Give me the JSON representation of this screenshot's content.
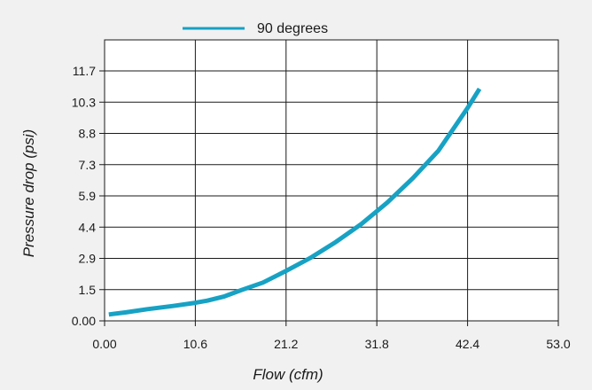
{
  "chart_data": {
    "type": "line",
    "title": "",
    "xlabel": "Flow (cfm)",
    "ylabel": "Pressure drop (psi)",
    "xlim": [
      0,
      53.0
    ],
    "ylim": [
      0,
      13.2
    ],
    "x_ticks": [
      "0.00",
      "10.6",
      "21.2",
      "31.8",
      "42.4",
      "53.0"
    ],
    "y_ticks": [
      "0.00",
      "1.5",
      "2.9",
      "4.4",
      "5.9",
      "7.3",
      "8.8",
      "10.3",
      "11.7"
    ],
    "grid": true,
    "legend": "top-center",
    "series": [
      {
        "name": "90 degrees",
        "color": "#17a2c4",
        "x": [
          0.5,
          2.5,
          5.0,
          8.0,
          10.6,
          12.0,
          14.0,
          16.0,
          18.5,
          21.2,
          24.0,
          27.0,
          30.0,
          33.0,
          36.0,
          39.0,
          42.4,
          43.8
        ],
        "y": [
          0.3,
          0.4,
          0.55,
          0.7,
          0.85,
          0.95,
          1.15,
          1.45,
          1.8,
          2.35,
          2.95,
          3.7,
          4.55,
          5.55,
          6.7,
          8.0,
          10.0,
          10.9
        ]
      }
    ]
  }
}
